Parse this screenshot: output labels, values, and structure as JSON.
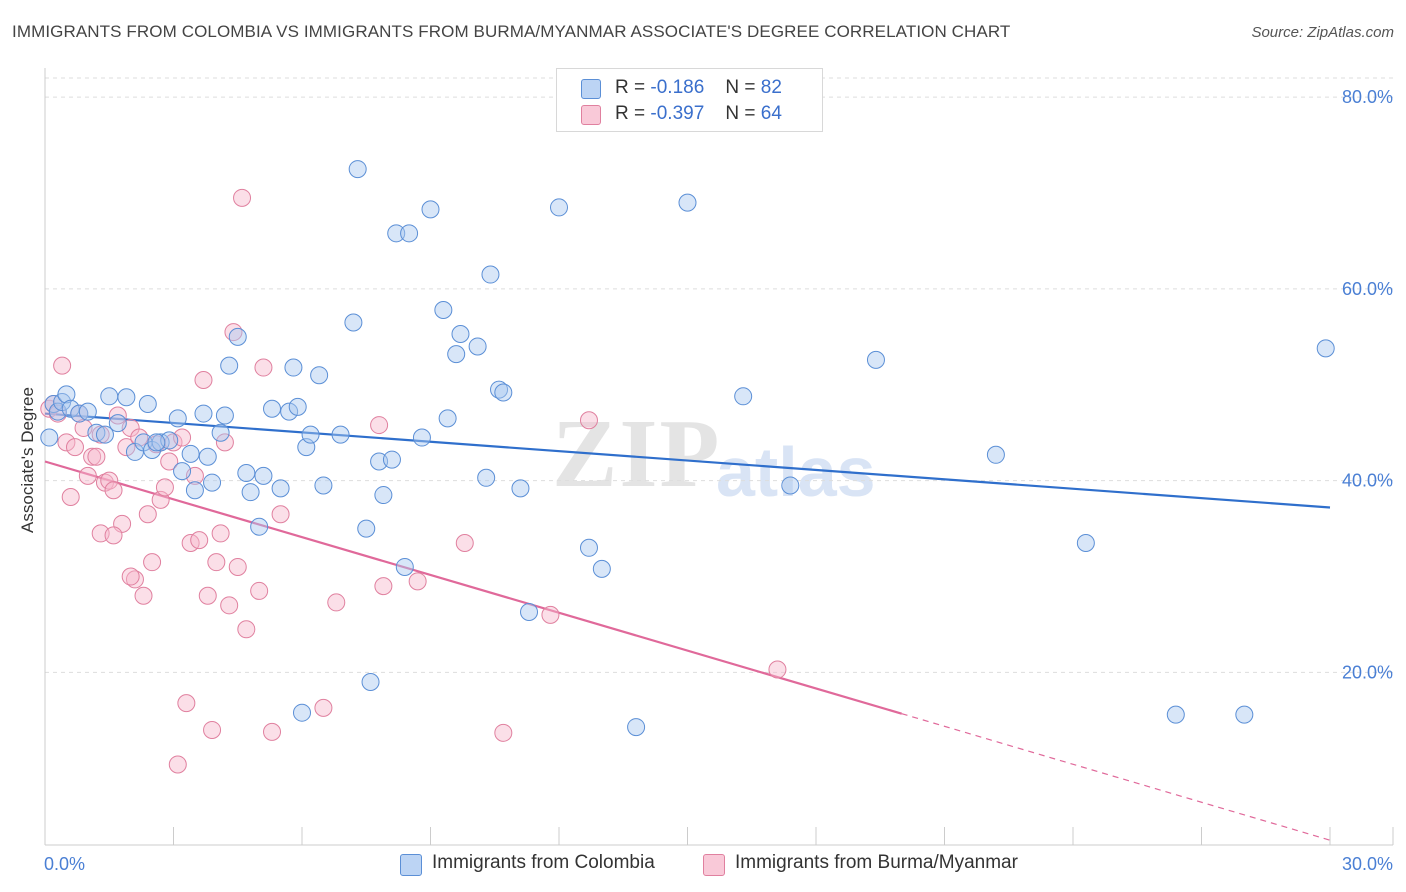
{
  "header": {
    "title": "IMMIGRANTS FROM COLOMBIA VS IMMIGRANTS FROM BURMA/MYANMAR ASSOCIATE'S DEGREE CORRELATION CHART",
    "source": "Source: ZipAtlas.com"
  },
  "watermark": {
    "zip": "ZIP",
    "atlas": "atlas"
  },
  "legend": {
    "series1": {
      "r_label": "R =",
      "r_value": "-0.186",
      "n_label": "N =",
      "n_value": "82"
    },
    "series2": {
      "r_label": "R =",
      "r_value": "-0.397",
      "n_label": "N =",
      "n_value": "64"
    }
  },
  "colors": {
    "blue_fill": "#a9c8f0",
    "blue_stroke": "#5b8fd6",
    "blue_line": "#2f6fcc",
    "pink_fill": "#f6b8cc",
    "pink_stroke": "#e0809f",
    "pink_line": "#e0699a",
    "grid": "#dddddd",
    "tick_text": "#4a7fd4"
  },
  "chart_data": {
    "type": "scatter",
    "title": "IMMIGRANTS FROM COLOMBIA VS IMMIGRANTS FROM BURMA/MYANMAR ASSOCIATE'S DEGREE CORRELATION CHART",
    "xlabel": "",
    "ylabel": "Associate's Degree",
    "xlim": [
      0,
      30
    ],
    "ylim": [
      2,
      82
    ],
    "x_tick_labels": [
      "0.0%",
      "30.0%"
    ],
    "y_ticks": [
      20,
      40,
      60,
      80
    ],
    "y_tick_labels": [
      "20.0%",
      "40.0%",
      "60.0%",
      "80.0%"
    ],
    "grid": true,
    "legend_position": "top-center",
    "series": [
      {
        "name": "Immigrants from Colombia",
        "color": "#5b8fd6",
        "R": -0.186,
        "N": 82,
        "trendline": {
          "x": [
            0,
            30
          ],
          "y": [
            47.0,
            37.2
          ]
        },
        "points": [
          [
            0.1,
            44.5
          ],
          [
            0.2,
            48.0
          ],
          [
            0.3,
            47.2
          ],
          [
            0.4,
            48.2
          ],
          [
            0.5,
            49.0
          ],
          [
            0.6,
            47.5
          ],
          [
            0.8,
            47.0
          ],
          [
            1.0,
            47.2
          ],
          [
            1.2,
            45.0
          ],
          [
            1.4,
            44.8
          ],
          [
            1.5,
            48.8
          ],
          [
            1.7,
            46.0
          ],
          [
            1.9,
            48.7
          ],
          [
            2.1,
            43.0
          ],
          [
            2.3,
            44.0
          ],
          [
            2.4,
            48.0
          ],
          [
            2.5,
            43.2
          ],
          [
            2.7,
            44.0
          ],
          [
            2.9,
            44.2
          ],
          [
            3.1,
            46.5
          ],
          [
            3.2,
            41.0
          ],
          [
            3.4,
            42.8
          ],
          [
            3.5,
            39.0
          ],
          [
            3.7,
            47.0
          ],
          [
            3.8,
            42.5
          ],
          [
            3.9,
            39.8
          ],
          [
            4.1,
            45.0
          ],
          [
            4.2,
            46.8
          ],
          [
            4.3,
            52.0
          ],
          [
            4.5,
            55.0
          ],
          [
            4.7,
            40.8
          ],
          [
            4.8,
            38.8
          ],
          [
            5.0,
            35.2
          ],
          [
            5.1,
            40.5
          ],
          [
            5.3,
            47.5
          ],
          [
            5.5,
            39.2
          ],
          [
            5.7,
            47.2
          ],
          [
            5.8,
            51.8
          ],
          [
            5.9,
            47.7
          ],
          [
            6.1,
            43.5
          ],
          [
            6.2,
            44.8
          ],
          [
            6.4,
            51.0
          ],
          [
            6.5,
            39.5
          ],
          [
            6.9,
            44.8
          ],
          [
            7.2,
            56.5
          ],
          [
            7.3,
            72.5
          ],
          [
            7.5,
            35.0
          ],
          [
            7.6,
            19.0
          ],
          [
            7.8,
            42.0
          ],
          [
            7.9,
            38.5
          ],
          [
            8.1,
            42.2
          ],
          [
            8.2,
            65.8
          ],
          [
            8.4,
            31.0
          ],
          [
            8.5,
            65.8
          ],
          [
            8.8,
            44.5
          ],
          [
            9.0,
            68.3
          ],
          [
            9.3,
            57.8
          ],
          [
            9.4,
            46.5
          ],
          [
            9.6,
            53.2
          ],
          [
            9.7,
            55.3
          ],
          [
            10.1,
            54.0
          ],
          [
            10.3,
            40.3
          ],
          [
            10.4,
            61.5
          ],
          [
            10.6,
            49.5
          ],
          [
            10.7,
            49.2
          ],
          [
            11.1,
            39.2
          ],
          [
            11.3,
            26.3
          ],
          [
            12.0,
            68.5
          ],
          [
            12.7,
            33.0
          ],
          [
            13.0,
            30.8
          ],
          [
            13.8,
            14.3
          ],
          [
            15.0,
            69.0
          ],
          [
            16.3,
            48.8
          ],
          [
            17.4,
            39.5
          ],
          [
            19.4,
            52.6
          ],
          [
            22.2,
            42.7
          ],
          [
            24.3,
            33.5
          ],
          [
            26.4,
            15.6
          ],
          [
            28.0,
            15.6
          ],
          [
            29.9,
            53.8
          ],
          [
            6.0,
            15.8
          ],
          [
            2.6,
            44.0
          ]
        ]
      },
      {
        "name": "Immigrants from Burma/Myanmar",
        "color": "#e0809f",
        "R": -0.397,
        "N": 64,
        "trendline": {
          "x": [
            0,
            20.0
          ],
          "y": [
            42.0,
            15.7
          ]
        },
        "trendline_dashed": {
          "x": [
            20.0,
            30
          ],
          "y": [
            15.7,
            2.5
          ]
        },
        "points": [
          [
            0.1,
            47.5
          ],
          [
            0.2,
            48.0
          ],
          [
            0.3,
            47.0
          ],
          [
            0.4,
            52.0
          ],
          [
            0.5,
            44.0
          ],
          [
            0.6,
            38.3
          ],
          [
            0.8,
            47.0
          ],
          [
            0.9,
            45.5
          ],
          [
            1.0,
            40.5
          ],
          [
            1.1,
            42.5
          ],
          [
            1.2,
            42.5
          ],
          [
            1.3,
            34.5
          ],
          [
            1.4,
            39.8
          ],
          [
            1.5,
            40.0
          ],
          [
            1.6,
            39.0
          ],
          [
            1.7,
            46.8
          ],
          [
            1.8,
            35.5
          ],
          [
            1.9,
            43.5
          ],
          [
            2.0,
            45.5
          ],
          [
            2.1,
            29.7
          ],
          [
            2.2,
            44.5
          ],
          [
            2.3,
            28.0
          ],
          [
            2.4,
            36.5
          ],
          [
            2.5,
            31.5
          ],
          [
            2.6,
            43.8
          ],
          [
            2.7,
            38.0
          ],
          [
            2.8,
            39.3
          ],
          [
            2.9,
            42.0
          ],
          [
            3.0,
            44.0
          ],
          [
            3.1,
            10.4
          ],
          [
            3.2,
            44.5
          ],
          [
            3.3,
            16.8
          ],
          [
            3.4,
            33.5
          ],
          [
            3.5,
            40.5
          ],
          [
            3.6,
            33.8
          ],
          [
            3.7,
            50.5
          ],
          [
            3.8,
            28.0
          ],
          [
            3.9,
            14.0
          ],
          [
            4.0,
            31.5
          ],
          [
            4.1,
            34.5
          ],
          [
            4.2,
            44.0
          ],
          [
            4.3,
            27.0
          ],
          [
            4.4,
            55.5
          ],
          [
            4.5,
            31.0
          ],
          [
            4.6,
            69.5
          ],
          [
            4.7,
            24.5
          ],
          [
            5.0,
            28.5
          ],
          [
            5.1,
            51.8
          ],
          [
            5.3,
            13.8
          ],
          [
            5.5,
            36.5
          ],
          [
            6.5,
            16.3
          ],
          [
            6.8,
            27.3
          ],
          [
            7.8,
            45.8
          ],
          [
            7.9,
            29.0
          ],
          [
            8.7,
            29.5
          ],
          [
            9.8,
            33.5
          ],
          [
            10.7,
            13.7
          ],
          [
            11.8,
            26.0
          ],
          [
            12.7,
            46.3
          ],
          [
            17.1,
            20.3
          ],
          [
            1.6,
            34.3
          ],
          [
            2.0,
            30.0
          ],
          [
            0.7,
            43.5
          ],
          [
            1.3,
            44.8
          ]
        ]
      }
    ]
  },
  "bottom_legend": {
    "item1": "Immigrants from Colombia",
    "item2": "Immigrants from Burma/Myanmar"
  }
}
